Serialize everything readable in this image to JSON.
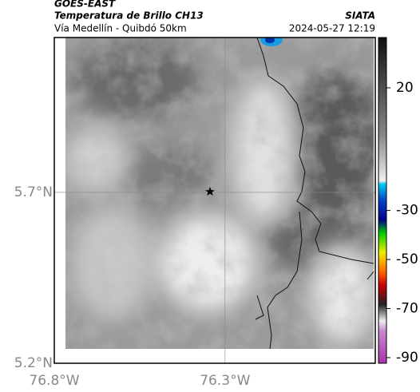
{
  "header": {
    "source": "GOES-EAST",
    "product": "Temperatura de Brillo CH13",
    "region": "Vía Medellín - Quibdó 50km",
    "agency": "SIATA",
    "timestamp": "2024-05-27 12:19"
  },
  "map": {
    "latlim": [
      5.2,
      6.153
    ],
    "lonlim": [
      -76.8,
      -75.86
    ],
    "latticks": [
      {
        "value": 5.2,
        "label": "5.2°N"
      },
      {
        "value": 5.7,
        "label": "5.7°N"
      }
    ],
    "lonticks": [
      {
        "value": -76.8,
        "label": "76.8°W"
      },
      {
        "value": -76.3,
        "label": "76.3°W"
      }
    ],
    "grid": true
  },
  "colorbar": {
    "lim": [
      -92.3,
      40.5
    ],
    "ticks": [
      20,
      -30,
      -50,
      -70,
      -90
    ]
  }
}
